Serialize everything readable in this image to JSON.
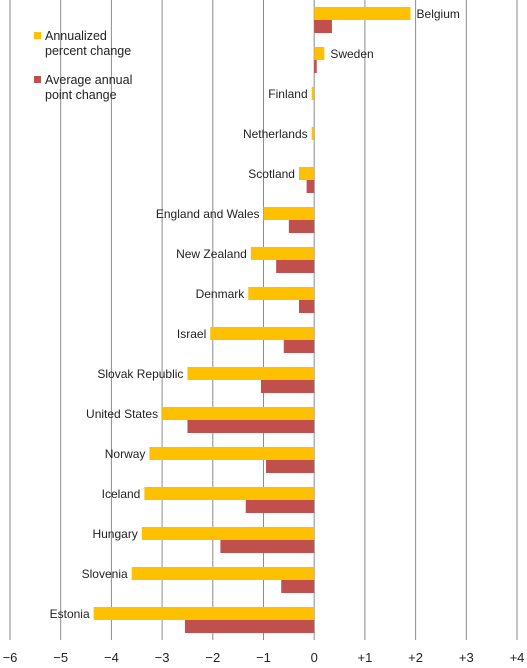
{
  "chart_data": {
    "type": "bar",
    "orientation": "horizontal",
    "title": "",
    "xlabel": "",
    "ylabel": "",
    "xlim": [
      -6,
      4
    ],
    "xticks": [
      -6,
      -5,
      -4,
      -3,
      -2,
      -1,
      0,
      1,
      2,
      3,
      4
    ],
    "xtick_labels": [
      "−6",
      "−5",
      "−4",
      "−3",
      "−2",
      "−1",
      "0",
      "+1",
      "+2",
      "+3",
      "+4"
    ],
    "grid": "vertical",
    "legend": "top-left",
    "categories": [
      "Belgium",
      "Sweden",
      "Finland",
      "Netherlands",
      "Scotland",
      "England and Wales",
      "New Zealand",
      "Denmark",
      "Israel",
      "Slovak Republic",
      "United States",
      "Norway",
      "Iceland",
      "Hungary",
      "Slovenia",
      "Estonia"
    ],
    "series": [
      {
        "name": "Annualized percent change",
        "color": "#FFC000",
        "values": [
          1.9,
          0.2,
          -0.05,
          -0.05,
          -0.3,
          -1.0,
          -1.25,
          -1.3,
          -2.05,
          -2.5,
          -3.0,
          -3.25,
          -3.35,
          -3.4,
          -3.6,
          -4.35
        ]
      },
      {
        "name": "Average annual point change",
        "color": "#C0504D",
        "values": [
          0.35,
          0.05,
          0,
          0,
          -0.15,
          -0.5,
          -0.75,
          -0.3,
          -0.6,
          -1.05,
          -2.5,
          -0.95,
          -1.35,
          -1.85,
          -0.65,
          -2.55
        ]
      }
    ]
  },
  "legend": {
    "items": [
      {
        "line1": "Annualized",
        "line2": "percent change",
        "color": "#FFC000"
      },
      {
        "line1": "Average annual",
        "line2": "point change",
        "color": "#C0504D"
      }
    ]
  }
}
